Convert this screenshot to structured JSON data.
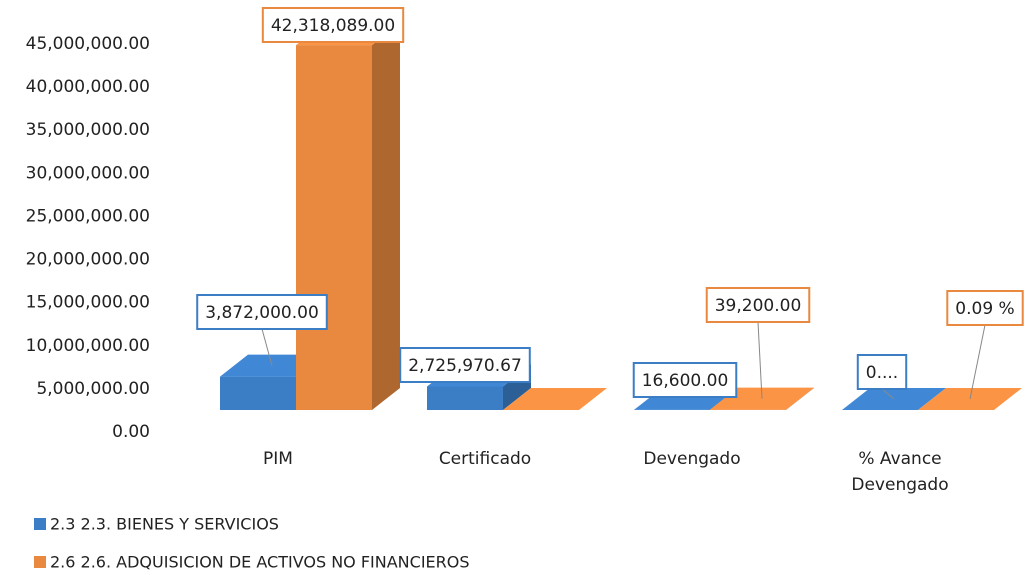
{
  "chart_data": {
    "type": "bar3d",
    "categories": [
      "PIM",
      "Certificado",
      "Devengado",
      "% Avance Devengado"
    ],
    "series": [
      {
        "name": "2.3 2.3.  BIENES Y SERVICIOS",
        "color": "#3b7ec6",
        "values": [
          3872000,
          2725970.67,
          16600,
          0
        ],
        "value_labels": [
          "3,872,000.00",
          "2,725,970.67",
          "16,600.00",
          "0...."
        ]
      },
      {
        "name": "2.6 2.6.  ADQUISICION DE ACTIVOS NO FINANCIEROS",
        "color": "#e8893f",
        "values": [
          42318089,
          0,
          39200,
          0.09
        ],
        "value_labels": [
          "42,318,089.00",
          null,
          "39,200.00",
          "0.09 %"
        ]
      }
    ],
    "ylim": [
      0,
      45000000
    ],
    "yticks": [
      {
        "value": 0,
        "label": "0.00"
      },
      {
        "value": 5000000,
        "label": "5,000,000.00"
      },
      {
        "value": 10000000,
        "label": "10,000,000.00"
      },
      {
        "value": 15000000,
        "label": "15,000,000.00"
      },
      {
        "value": 20000000,
        "label": "20,000,000.00"
      },
      {
        "value": 25000000,
        "label": "25,000,000.00"
      },
      {
        "value": 30000000,
        "label": "30,000,000.00"
      },
      {
        "value": 35000000,
        "label": "35,000,000.00"
      },
      {
        "value": 40000000,
        "label": "40,000,000.00"
      },
      {
        "value": 45000000,
        "label": "45,000,000.00"
      }
    ],
    "legend": "bottom-left"
  }
}
